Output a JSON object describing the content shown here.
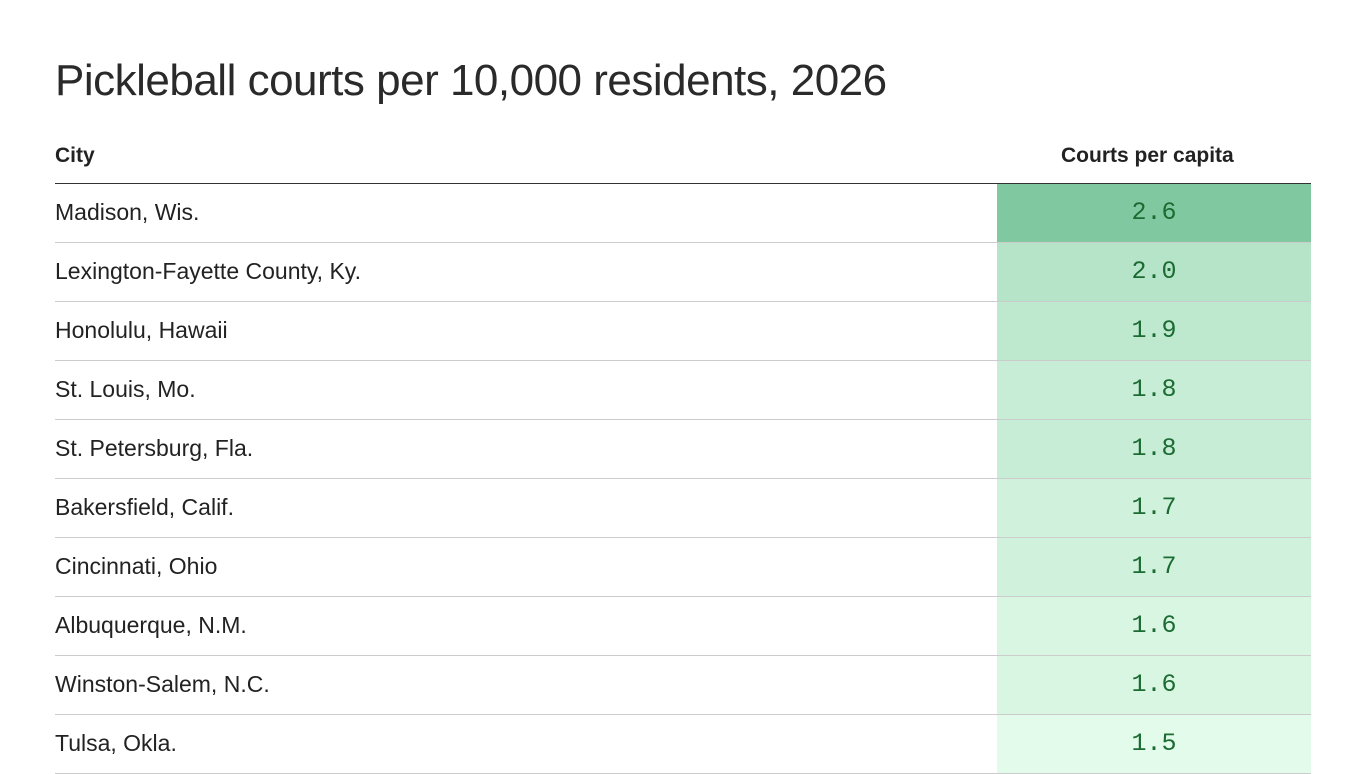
{
  "header": {
    "title": "Pickleball courts per 10,000 residents, 2026"
  },
  "table": {
    "columns": [
      "City",
      "Courts per capita"
    ],
    "color_scale": [
      "#e2fbea",
      "#80c9a0"
    ],
    "value_color": "#1b6b32",
    "rows": [
      [
        "Madison, Wis.",
        "2.6"
      ],
      [
        "Lexington-Fayette County, Ky.",
        "2.0"
      ],
      [
        "Honolulu, Hawaii",
        "1.9"
      ],
      [
        "St. Louis, Mo.",
        "1.8"
      ],
      [
        "St. Petersburg, Fla.",
        "1.8"
      ],
      [
        "Bakersfield, Calif.",
        "1.7"
      ],
      [
        "Cincinnati, Ohio",
        "1.7"
      ],
      [
        "Albuquerque, N.M.",
        "1.6"
      ],
      [
        "Winston-Salem, N.C.",
        "1.6"
      ],
      [
        "Tulsa, Okla.",
        "1.5"
      ]
    ]
  }
}
